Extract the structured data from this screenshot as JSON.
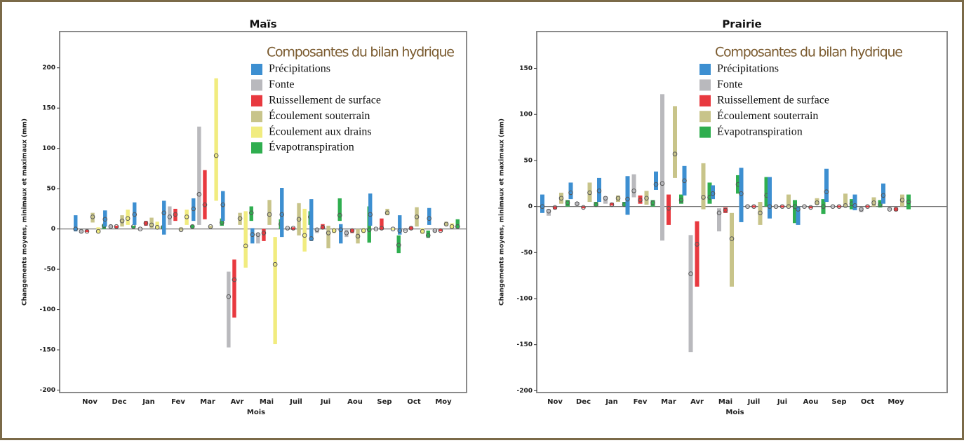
{
  "chart_data": [
    {
      "type": "floating-bar",
      "title": "Maïs",
      "xlabel": "Mois",
      "ylabel": "Changements moyens, minimaux et maximaux (mm)",
      "legend_title": "Composantes du bilan hydrique",
      "categories": [
        "Nov",
        "Dec",
        "Jan",
        "Fev",
        "Mar",
        "Avr",
        "Mai",
        "Juil",
        "Jui",
        "Aou",
        "Sep",
        "Oct",
        "Moy"
      ],
      "ylim": [
        -203,
        245
      ],
      "yticks": [
        -200,
        -150,
        -100,
        -50,
        0,
        50,
        100,
        150,
        200
      ],
      "series": [
        {
          "name": "Précipitations",
          "color": "#3d8fd1",
          "min": [
            -3,
            3,
            5,
            -7,
            10,
            10,
            -18,
            -10,
            -15,
            -18,
            4,
            -7,
            5
          ],
          "max": [
            17,
            23,
            33,
            35,
            38,
            47,
            1,
            51,
            37,
            6,
            44,
            17,
            26
          ],
          "values": [
            0,
            12,
            18,
            20,
            25,
            30,
            -7,
            18,
            -12,
            -1,
            18,
            -2,
            13
          ]
        },
        {
          "name": "Fonte",
          "color": "#b9b9bd",
          "min": [
            -5,
            1,
            -1,
            5,
            5,
            -147,
            -18,
            0,
            -5,
            -10,
            -1,
            -3,
            -4
          ],
          "max": [
            -1,
            5,
            1,
            28,
            127,
            -53,
            -5,
            2,
            1,
            -1,
            1,
            1,
            -1
          ],
          "values": [
            -3,
            3,
            0,
            15,
            43,
            -84,
            -7,
            1,
            -1,
            -5,
            0,
            -2,
            -2
          ]
        },
        {
          "name": "Ruissellement de surface",
          "color": "#e8393f",
          "min": [
            -4,
            1,
            4,
            10,
            12,
            -110,
            -15,
            -1,
            0,
            -5,
            -1,
            -1,
            -3
          ],
          "max": [
            -1,
            4,
            10,
            25,
            73,
            -38,
            0,
            2,
            6,
            0,
            13,
            3,
            0
          ],
          "values": [
            -3,
            3,
            7,
            18,
            30,
            -63,
            -5,
            1,
            2,
            -2,
            1,
            1,
            -2
          ]
        },
        {
          "name": "Écoulement souterrain",
          "color": "#c8c48a",
          "min": [
            8,
            3,
            1,
            -2,
            1,
            5,
            5,
            -8,
            -24,
            -18,
            17,
            3,
            4
          ],
          "max": [
            20,
            17,
            14,
            2,
            4,
            20,
            36,
            32,
            4,
            0,
            25,
            27,
            9
          ],
          "values": [
            15,
            10,
            5,
            -1,
            3,
            13,
            18,
            12,
            -5,
            -9,
            20,
            15,
            6
          ]
        },
        {
          "name": "Écoulement aux drains",
          "color": "#f1ec7f",
          "min": [
            -5,
            5,
            0,
            5,
            35,
            -48,
            -143,
            -28,
            -5,
            -5,
            -1,
            -6,
            1
          ],
          "max": [
            2,
            24,
            9,
            24,
            187,
            22,
            -10,
            25,
            1,
            1,
            1,
            1,
            7
          ],
          "values": [
            -3,
            13,
            2,
            15,
            91,
            -21,
            -44,
            -8,
            -2,
            -2,
            0,
            -3,
            3
          ]
        },
        {
          "name": "Évapotranspiration",
          "color": "#2fae4f",
          "min": [
            0,
            1,
            0,
            1,
            4,
            10,
            0,
            5,
            10,
            -17,
            -30,
            -11,
            1
          ],
          "max": [
            6,
            4,
            4,
            5,
            13,
            28,
            12,
            22,
            38,
            28,
            -8,
            -2,
            12
          ],
          "values": [
            4,
            3,
            2,
            3,
            8,
            20,
            6,
            15,
            17,
            -1,
            -20,
            -8,
            3
          ]
        }
      ]
    },
    {
      "type": "floating-bar",
      "title": "Prairie",
      "xlabel": "Mois",
      "ylabel": "Changements moyens, minimaux et maximaux (mm)",
      "legend_title": "Composantes du bilan hydrique",
      "categories": [
        "Nov",
        "Dec",
        "Jan",
        "Fev",
        "Mar",
        "Avr",
        "Mai",
        "Juil",
        "Jui",
        "Aou",
        "Sep",
        "Oct",
        "Moy"
      ],
      "ylim": [
        -202,
        190
      ],
      "yticks": [
        -200,
        -150,
        -100,
        -50,
        0,
        50,
        100,
        150
      ],
      "series": [
        {
          "name": "Précipitations",
          "color": "#3d8fd1",
          "min": [
            -7,
            8,
            5,
            -9,
            18,
            12,
            8,
            -17,
            -13,
            -20,
            5,
            -4,
            3
          ],
          "max": [
            13,
            26,
            31,
            33,
            38,
            44,
            23,
            42,
            32,
            0,
            41,
            13,
            25
          ],
          "values": [
            0,
            15,
            17,
            8,
            24,
            28,
            14,
            14,
            0,
            -3,
            16,
            1,
            12
          ]
        },
        {
          "name": "Fonte",
          "color": "#b9b9bd",
          "min": [
            -10,
            1,
            3,
            10,
            -37,
            -158,
            -27,
            -1,
            -1,
            -1,
            -1,
            -6,
            -4
          ],
          "max": [
            -3,
            5,
            11,
            35,
            122,
            -31,
            -2,
            1,
            1,
            1,
            1,
            -1,
            -1
          ],
          "values": [
            -5,
            3,
            9,
            17,
            25,
            -73,
            -7,
            0,
            0,
            0,
            0,
            -3,
            -3
          ]
        },
        {
          "name": "Ruissellement de surface",
          "color": "#e8393f",
          "min": [
            -3,
            -2,
            1,
            3,
            -20,
            -87,
            -7,
            -1,
            -1,
            -2,
            -1,
            -1,
            -5
          ],
          "max": [
            0,
            0,
            4,
            12,
            13,
            -16,
            -1,
            1,
            1,
            0,
            1,
            1,
            -1
          ],
          "values": [
            -1,
            -1,
            2,
            7,
            -2,
            -41,
            -4,
            0,
            0,
            -1,
            0,
            0,
            -3
          ]
        },
        {
          "name": "Écoulement souterrain",
          "color": "#c8c48a",
          "min": [
            3,
            5,
            5,
            2,
            31,
            -3,
            -87,
            -20,
            -1,
            2,
            0,
            0,
            0
          ],
          "max": [
            15,
            26,
            12,
            17,
            109,
            47,
            -7,
            5,
            13,
            9,
            14,
            10,
            13
          ],
          "values": [
            9,
            15,
            9,
            9,
            57,
            10,
            -35,
            -7,
            0,
            4,
            1,
            4,
            7
          ]
        },
        {
          "name": "Évapotranspiration",
          "color": "#2fae4f",
          "min": [
            0,
            0,
            0,
            0,
            3,
            3,
            14,
            0,
            -18,
            -8,
            -3,
            -1,
            -3
          ],
          "max": [
            7,
            5,
            5,
            7,
            13,
            26,
            34,
            32,
            7,
            8,
            8,
            7,
            13
          ],
          "values": [
            4,
            2,
            2,
            4,
            7,
            10,
            24,
            12,
            0,
            0,
            3,
            2,
            5
          ]
        }
      ]
    }
  ]
}
